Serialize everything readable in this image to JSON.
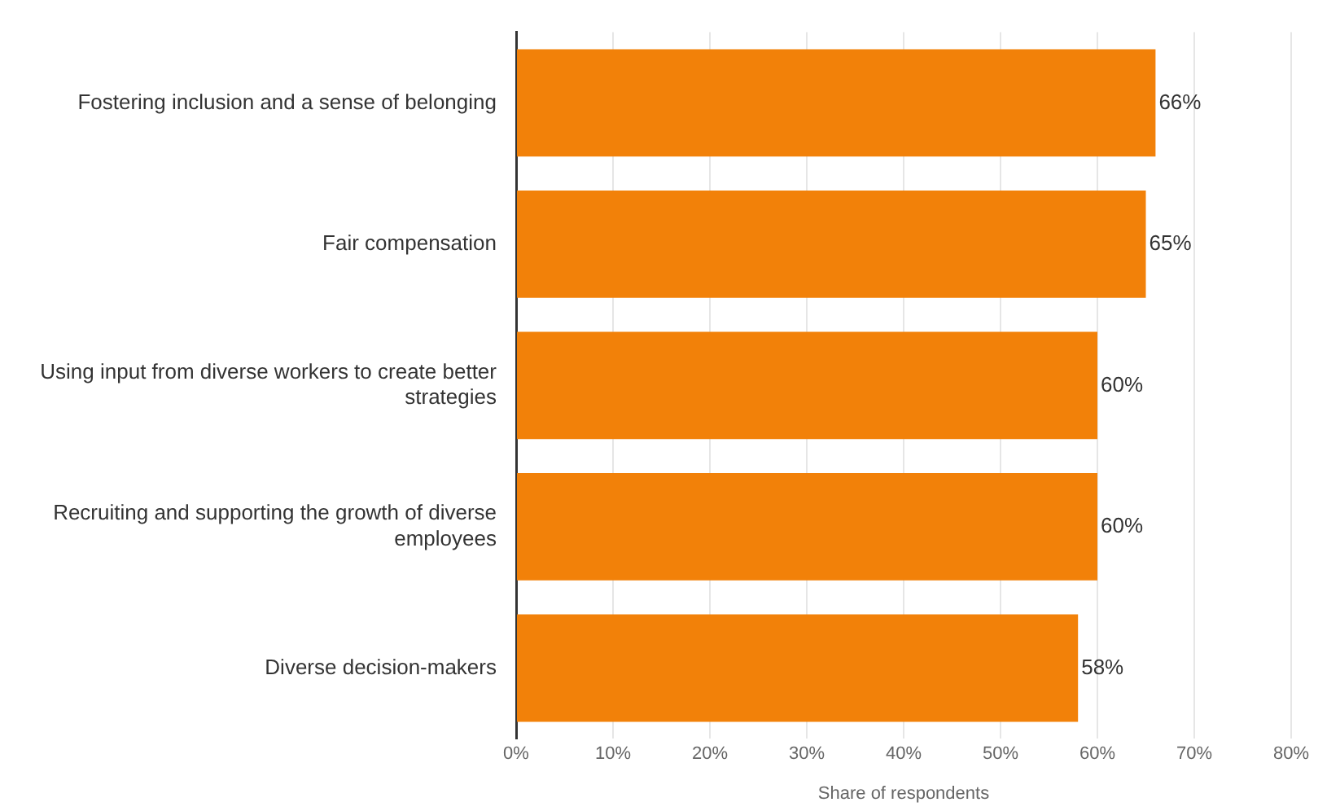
{
  "chart_data": {
    "type": "bar",
    "orientation": "horizontal",
    "xlabel": "Share of respondents",
    "categories": [
      "Fostering inclusion and a sense of belonging",
      "Fair compensation",
      "Using input from diverse workers to create better strategies",
      "Recruiting and supporting the growth of diverse employees",
      "Diverse decision-makers"
    ],
    "values": [
      66,
      65,
      60,
      60,
      58
    ],
    "color": "#f28109",
    "value_labels": [
      "66%",
      "65%",
      "60%",
      "60%",
      "58%"
    ],
    "xlim": [
      0,
      80
    ],
    "xticks": [
      {
        "value": 0,
        "label": "0%"
      },
      {
        "value": 10,
        "label": "10%"
      },
      {
        "value": 20,
        "label": "20%"
      },
      {
        "value": 30,
        "label": "30%"
      },
      {
        "value": 40,
        "label": "40%"
      },
      {
        "value": 50,
        "label": "50%"
      },
      {
        "value": 60,
        "label": "60%"
      },
      {
        "value": 70,
        "label": "70%"
      },
      {
        "value": 80,
        "label": "80%"
      }
    ],
    "grid": "x",
    "legend": false
  }
}
